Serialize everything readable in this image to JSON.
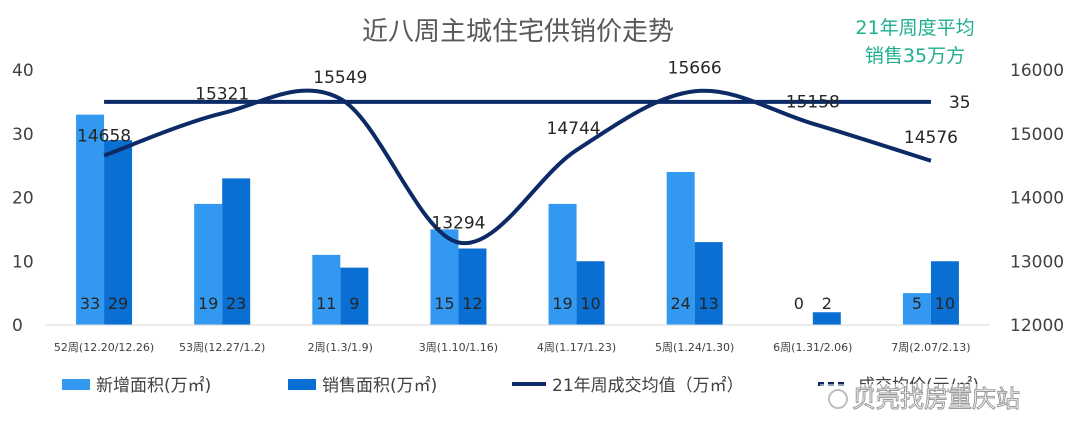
{
  "chart_data": {
    "type": "bar",
    "title": "近八周主城住宅供销价走势",
    "annotation": [
      "21年周度平均",
      "销售35万方"
    ],
    "categories": [
      "52周(12.20/12.26)",
      "53周(12.27/1.2)",
      "2周(1.3/1.9)",
      "3周(1.10/1.16)",
      "4周(1.17/1.23)",
      "5周(1.24/1.30)",
      "6周(1.31/2.06)",
      "7周(2.07/2.13)"
    ],
    "series": [
      {
        "name": "新增面积(万㎡)",
        "type": "bar",
        "axis": "left",
        "color": "#3399f0",
        "values": [
          33,
          19,
          11,
          15,
          19,
          24,
          0,
          5
        ]
      },
      {
        "name": "销售面积(万㎡)",
        "type": "bar",
        "axis": "left",
        "color": "#0a6fd2",
        "values": [
          29,
          23,
          9,
          12,
          10,
          13,
          2,
          10
        ]
      },
      {
        "name": "21年周成交均值（万㎡）",
        "type": "line",
        "axis": "left",
        "color": "#0c2a66",
        "values": [
          35,
          35,
          35,
          35,
          35,
          35,
          35,
          35
        ],
        "end_label": "35"
      },
      {
        "name": "成交均价(元/㎡)",
        "type": "line",
        "axis": "right",
        "color": "#0c2a66",
        "values": [
          14658,
          15321,
          15549,
          13294,
          14744,
          15666,
          15158,
          14576
        ]
      }
    ],
    "y_left": {
      "min": 0,
      "max": 40,
      "ticks": [
        "0",
        "10",
        "20",
        "30",
        "40"
      ]
    },
    "y_right": {
      "min": 12000,
      "max": 16000,
      "ticks": [
        "12000",
        "13000",
        "14000",
        "15000",
        "16000"
      ]
    },
    "grid": false,
    "legend": "bottom",
    "watermark": "贝壳找房重庆站"
  }
}
